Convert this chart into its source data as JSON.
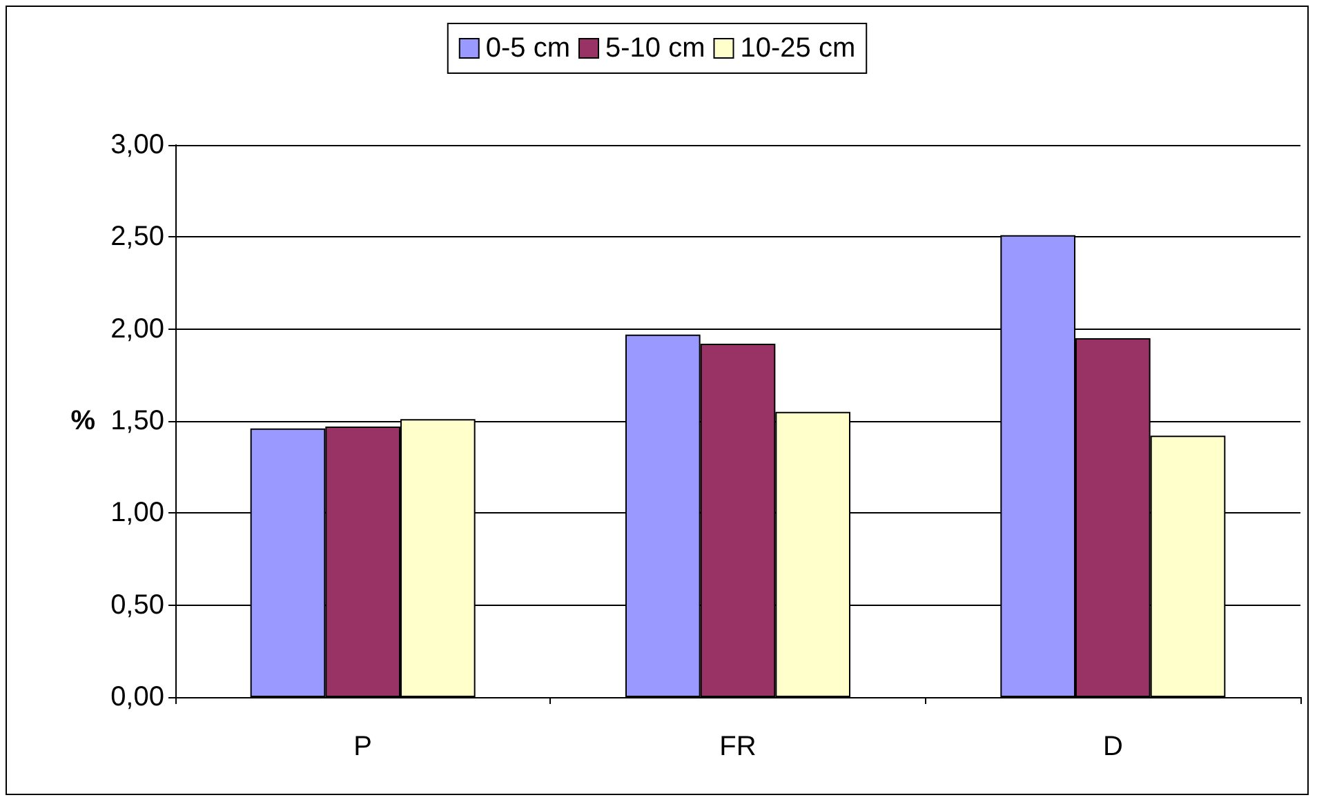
{
  "chart_data": {
    "type": "bar",
    "ylabel": "%",
    "categories": [
      "P",
      "FR",
      "D"
    ],
    "series": [
      {
        "name": "0-5 cm",
        "color": "#9999ff",
        "values": [
          1.46,
          1.97,
          2.51
        ]
      },
      {
        "name": "5-10 cm",
        "color": "#993366",
        "values": [
          1.47,
          1.92,
          1.95
        ]
      },
      {
        "name": "10-25 cm",
        "color": "#ffffcc",
        "values": [
          1.51,
          1.55,
          1.42
        ]
      }
    ],
    "ylim": [
      0,
      3
    ],
    "yticks": [
      {
        "value": 0,
        "label": "0,00"
      },
      {
        "value": 0.5,
        "label": "0,50"
      },
      {
        "value": 1,
        "label": "1,00"
      },
      {
        "value": 1.5,
        "label": "1,50"
      },
      {
        "value": 2,
        "label": "2,00"
      },
      {
        "value": 2.5,
        "label": "2,50"
      },
      {
        "value": 3,
        "label": "3,00"
      }
    ],
    "grid": "y",
    "legend": "top"
  }
}
